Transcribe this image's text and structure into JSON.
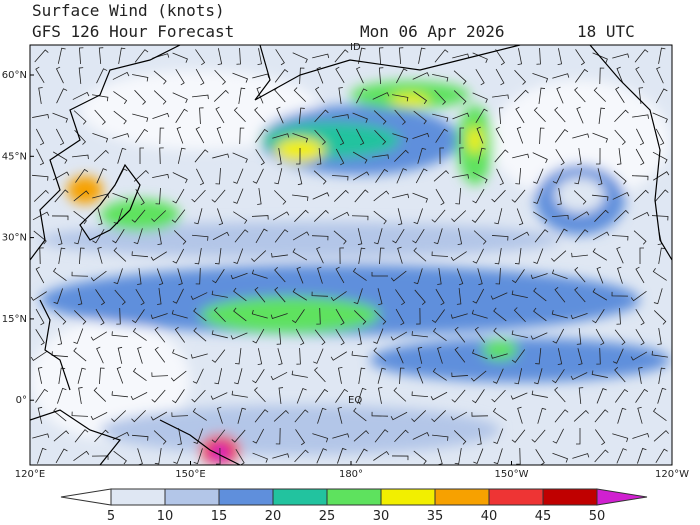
{
  "header": {
    "title": "Surface Wind (knots)",
    "subtitle": "GFS 126 Hour Forecast",
    "date": "Mon 06 Apr 2026",
    "time": "18 UTC"
  },
  "map": {
    "lat_labels": [
      "60°N",
      "45°N",
      "30°N",
      "15°N",
      "0°"
    ],
    "lon_labels": [
      "120°E",
      "150°E",
      "180°",
      "150°W",
      "120°W"
    ],
    "place_labels": [
      "ID",
      "EQ"
    ]
  },
  "colorbar": {
    "ticks": [
      5,
      10,
      15,
      20,
      25,
      30,
      35,
      40,
      45,
      50
    ],
    "colors": [
      "#ffffff",
      "#dfe7f3",
      "#b3c6e8",
      "#5f8fdc",
      "#22c39f",
      "#5ee25e",
      "#f2ef00",
      "#f7a100",
      "#ee3434",
      "#c00000",
      "#d020d0"
    ]
  }
}
